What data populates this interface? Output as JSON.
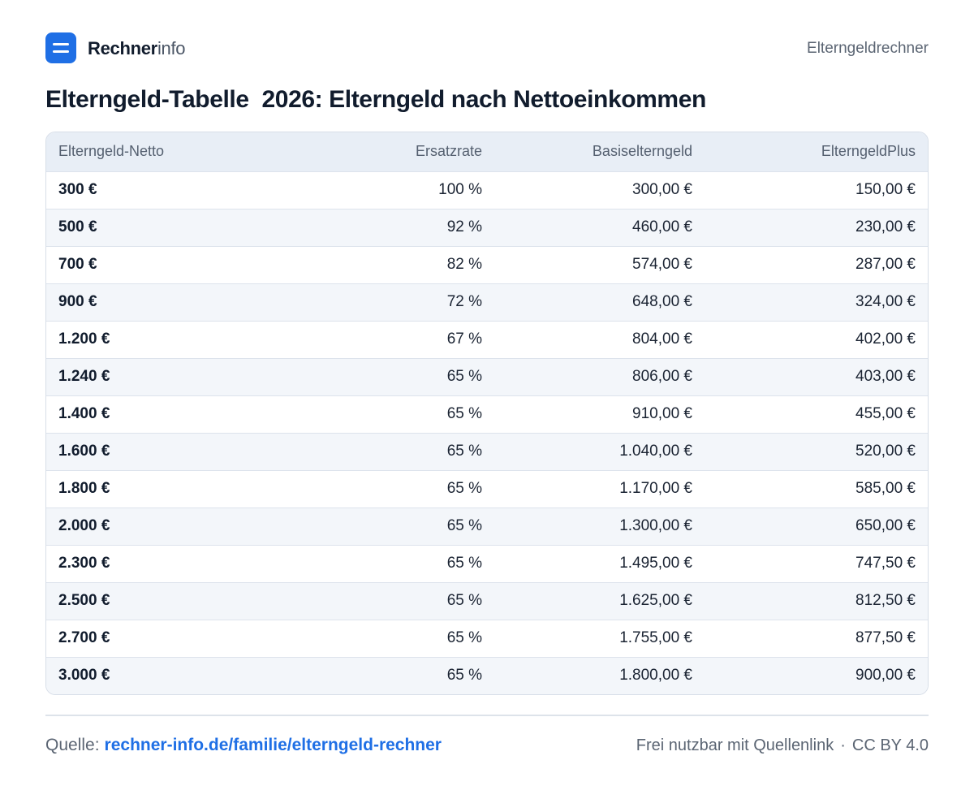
{
  "brand": {
    "name_bold": "Rechner",
    "name_light": "info",
    "logo_icon": "rechnerinfo-logo-icon"
  },
  "header": {
    "right_label": "Elterngeldrechner"
  },
  "title": "Elterngeld-Tabelle  2026: Elterngeld nach Nettoeinkommen",
  "table": {
    "headers": [
      "Elterngeld-Netto",
      "Ersatzrate",
      "Basiselterngeld",
      "ElterngeldPlus"
    ],
    "rows": [
      [
        "300 €",
        "100 %",
        "300,00 €",
        "150,00 €"
      ],
      [
        "500 €",
        "92 %",
        "460,00 €",
        "230,00 €"
      ],
      [
        "700 €",
        "82 %",
        "574,00 €",
        "287,00 €"
      ],
      [
        "900 €",
        "72 %",
        "648,00 €",
        "324,00 €"
      ],
      [
        "1.200 €",
        "67 %",
        "804,00 €",
        "402,00 €"
      ],
      [
        "1.240 €",
        "65 %",
        "806,00 €",
        "403,00 €"
      ],
      [
        "1.400 €",
        "65 %",
        "910,00 €",
        "455,00 €"
      ],
      [
        "1.600 €",
        "65 %",
        "1.040,00 €",
        "520,00 €"
      ],
      [
        "1.800 €",
        "65 %",
        "1.170,00 €",
        "585,00 €"
      ],
      [
        "2.000 €",
        "65 %",
        "1.300,00 €",
        "650,00 €"
      ],
      [
        "2.300 €",
        "65 %",
        "1.495,00 €",
        "747,50 €"
      ],
      [
        "2.500 €",
        "65 %",
        "1.625,00 €",
        "812,50 €"
      ],
      [
        "2.700 €",
        "65 %",
        "1.755,00 €",
        "877,50 €"
      ],
      [
        "3.000 €",
        "65 %",
        "1.800,00 €",
        "900,00 €"
      ]
    ]
  },
  "footer": {
    "source_label": "Quelle:",
    "source_link": "rechner-info.de/familie/elterngeld-rechner",
    "license_text": "Frei nutzbar mit Quellenlink",
    "separator": "·",
    "license": "CC BY 4.0"
  },
  "colors": {
    "accent": "#1f6fe5",
    "header_bg": "#e8eef6",
    "zebra": "#f3f6fa"
  }
}
